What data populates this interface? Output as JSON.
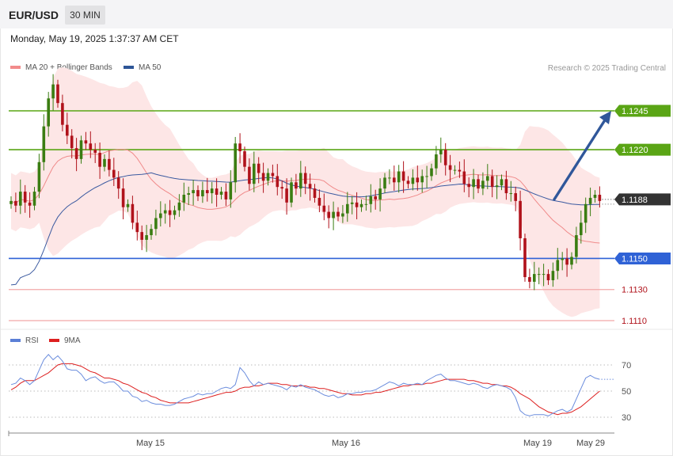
{
  "header": {
    "symbol": "EUR/USD",
    "timeframe": "30 MIN",
    "datetime": "Monday, May 19, 2025 1:37:37 AM CET",
    "credit": "Research © 2025 Trading Central"
  },
  "legend_main": [
    {
      "label": "MA 20 + Bollinger Bands",
      "color": "#f28b8b"
    },
    {
      "label": "MA 50",
      "color": "#2d5597"
    }
  ],
  "legend_rsi": [
    {
      "label": "RSI",
      "color": "#5b7fd6"
    },
    {
      "label": "9MA",
      "color": "#dd1f1f"
    }
  ],
  "colors": {
    "up": "#3a7d12",
    "down": "#b0121b",
    "band_fill": "#fde6e6",
    "resistance": "#5aa515",
    "support": "#2f62d6",
    "support_red": "#f2a8a8",
    "price_tag": "#333333",
    "arrow": "#30579a"
  },
  "chart_data": [
    {
      "type": "candlestick",
      "y_range": [
        1.11,
        1.129
      ],
      "x_labels": [
        "May 15",
        "May 16",
        "May 19",
        "May 29"
      ],
      "current_price": 1.1188,
      "levels": [
        {
          "value": 1.1245,
          "label": "1.1245",
          "kind": "resistance"
        },
        {
          "value": 1.122,
          "label": "1.1220",
          "kind": "resistance"
        },
        {
          "value": 1.115,
          "label": "1.1150",
          "kind": "support"
        },
        {
          "value": 1.113,
          "label": "1.1130",
          "kind": "support-light"
        },
        {
          "value": 1.111,
          "label": "1.1110",
          "kind": "support-light"
        }
      ],
      "projection": {
        "from": 1.1188,
        "to": 1.1245
      },
      "closes": [
        1.1187,
        1.1184,
        1.1193,
        1.1186,
        1.1184,
        1.1193,
        1.1212,
        1.1235,
        1.1253,
        1.1262,
        1.125,
        1.1236,
        1.1229,
        1.1221,
        1.1214,
        1.1226,
        1.1224,
        1.122,
        1.1218,
        1.1209,
        1.1214,
        1.1207,
        1.1202,
        1.1195,
        1.1183,
        1.1185,
        1.1173,
        1.1167,
        1.1162,
        1.1165,
        1.1169,
        1.1176,
        1.1179,
        1.1181,
        1.1178,
        1.1181,
        1.1186,
        1.1191,
        1.1192,
        1.1194,
        1.119,
        1.1194,
        1.1192,
        1.1195,
        1.1191,
        1.1193,
        1.1188,
        1.1199,
        1.1224,
        1.1219,
        1.1209,
        1.1198,
        1.1211,
        1.1205,
        1.12,
        1.1205,
        1.1203,
        1.1196,
        1.1195,
        1.1186,
        1.1199,
        1.1195,
        1.1205,
        1.1198,
        1.1195,
        1.1189,
        1.1184,
        1.118,
        1.1176,
        1.118,
        1.1177,
        1.1179,
        1.1185,
        1.1186,
        1.1183,
        1.1185,
        1.1185,
        1.119,
        1.1188,
        1.1195,
        1.1202,
        1.1202,
        1.1199,
        1.1206,
        1.12,
        1.1198,
        1.1202,
        1.1199,
        1.1203,
        1.1203,
        1.1208,
        1.1217,
        1.122,
        1.121,
        1.1207,
        1.1207,
        1.1206,
        1.1198,
        1.1196,
        1.1201,
        1.1195,
        1.12,
        1.1203,
        1.1196,
        1.1197,
        1.1201,
        1.1192,
        1.1192,
        1.1187,
        1.1163,
        1.1138,
        1.1135,
        1.114,
        1.114,
        1.114,
        1.1136,
        1.1142,
        1.1149,
        1.115,
        1.1146,
        1.1151,
        1.1165,
        1.1173,
        1.1185,
        1.1189,
        1.1191,
        1.1187
      ]
    },
    {
      "type": "line",
      "title": "RSI",
      "y_range": [
        25,
        80
      ],
      "y_ticks": [
        30,
        50,
        70
      ],
      "rsi": [
        55,
        56,
        60,
        58,
        55,
        58,
        66,
        74,
        78,
        74,
        77,
        73,
        67,
        66,
        66,
        63,
        58,
        60,
        61,
        58,
        56,
        57,
        57,
        54,
        50,
        50,
        46,
        45,
        42,
        43,
        41,
        40,
        40,
        39,
        39,
        40,
        42,
        44,
        45,
        46,
        48,
        47,
        48,
        48,
        50,
        52,
        53,
        52,
        55,
        68,
        64,
        58,
        54,
        57,
        55,
        56,
        55,
        54,
        53,
        51,
        54,
        53,
        55,
        53,
        52,
        51,
        49,
        47,
        46,
        47,
        45,
        46,
        48,
        48,
        49,
        49,
        50,
        50,
        51,
        53,
        55,
        57,
        56,
        54,
        56,
        55,
        55,
        56,
        55,
        58,
        60,
        62,
        63,
        60,
        58,
        58,
        57,
        56,
        55,
        56,
        55,
        53,
        52,
        54,
        55,
        54,
        53,
        51,
        45,
        35,
        32,
        31,
        32,
        32,
        32,
        31,
        33,
        35,
        36,
        34,
        36,
        44,
        52,
        60,
        62,
        60,
        59
      ],
      "ma9": [
        51,
        53,
        56,
        58,
        58,
        58,
        60,
        62,
        64,
        67,
        70,
        71,
        71,
        71,
        70,
        69,
        67,
        65,
        64,
        62,
        60,
        60,
        59,
        58,
        56,
        55,
        53,
        51,
        49,
        48,
        46,
        45,
        43,
        42,
        41,
        41,
        41,
        41,
        41,
        42,
        43,
        44,
        45,
        46,
        47,
        48,
        49,
        49,
        50,
        52,
        53,
        53,
        54,
        54,
        55,
        56,
        56,
        56,
        55,
        55,
        54,
        54,
        54,
        54,
        53,
        53,
        52,
        52,
        51,
        50,
        49,
        48,
        48,
        47,
        47,
        47,
        48,
        48,
        49,
        49,
        50,
        51,
        52,
        53,
        54,
        54,
        55,
        55,
        55,
        56,
        56,
        57,
        58,
        59,
        59,
        59,
        59,
        59,
        58,
        58,
        57,
        56,
        56,
        55,
        55,
        54,
        54,
        53,
        51,
        48,
        46,
        44,
        41,
        38,
        36,
        34,
        33,
        32,
        33,
        33,
        34,
        36,
        38,
        41,
        44,
        47,
        50
      ]
    }
  ]
}
